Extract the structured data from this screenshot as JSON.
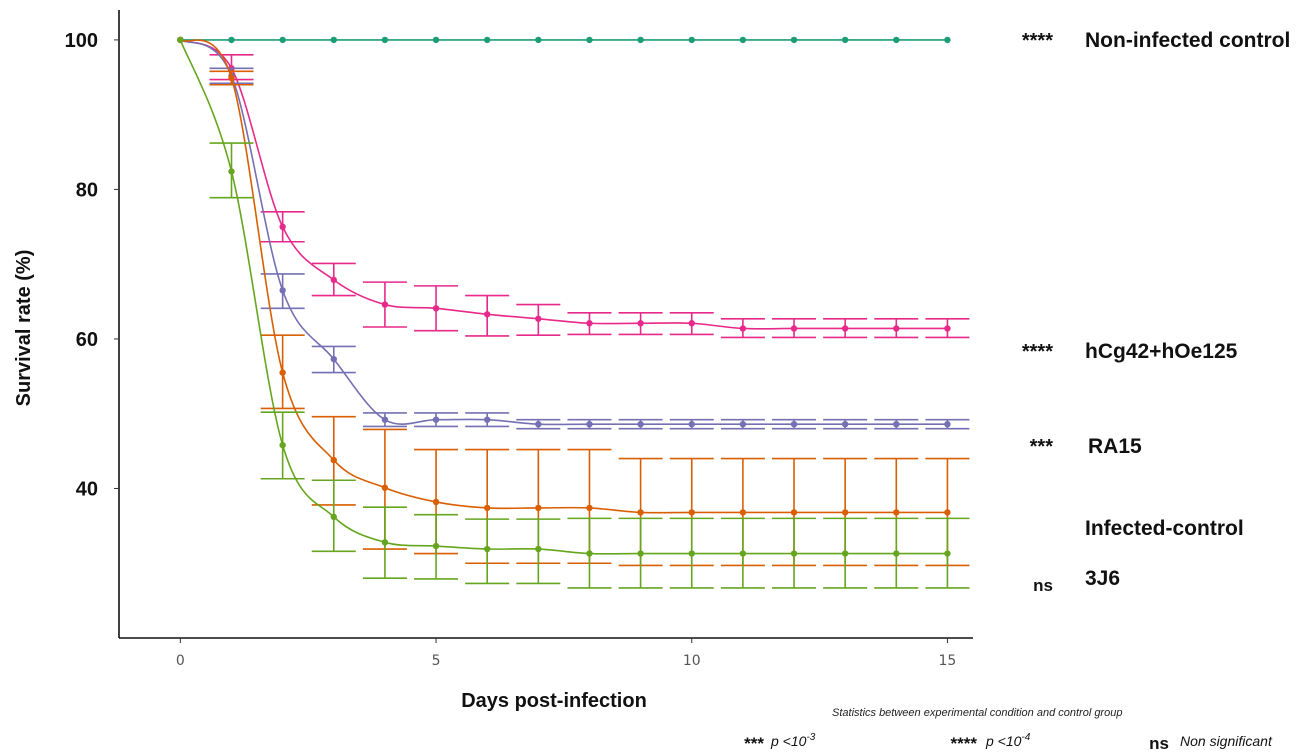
{
  "chart_data": {
    "type": "line",
    "xlabel": "Days post-infection",
    "ylabel": "Survival rate (%)",
    "xlim": [
      -1.2,
      15.5
    ],
    "ylim": [
      20,
      104
    ],
    "x_ticks": [
      0,
      5,
      10,
      15
    ],
    "y_ticks": [
      40,
      60,
      80,
      100
    ],
    "grid": false,
    "x": [
      0,
      1,
      2,
      3,
      4,
      5,
      6,
      7,
      8,
      9,
      10,
      11,
      12,
      13,
      14,
      15
    ],
    "series": [
      {
        "name": "Non-infected control",
        "color": "#1b9e77",
        "significance": "****",
        "values": [
          100,
          100,
          100,
          100,
          100,
          100,
          100,
          100,
          100,
          100,
          100,
          100,
          100,
          100,
          100,
          100
        ],
        "err_low": [
          0,
          0,
          0,
          0,
          0,
          0,
          0,
          0,
          0,
          0,
          0,
          0,
          0,
          0,
          0,
          0
        ],
        "err_high": [
          0,
          0,
          0,
          0,
          0,
          0,
          0,
          0,
          0,
          0,
          0,
          0,
          0,
          0,
          0,
          0
        ]
      },
      {
        "name": "hCg42+hOe125",
        "color": "#e7298a",
        "significance": "****",
        "values": [
          100,
          96.2,
          75,
          67.9,
          64.6,
          64.1,
          63.3,
          62.7,
          62.1,
          62.1,
          62.1,
          61.4,
          61.4,
          61.4,
          61.4,
          61.4
        ],
        "err_low": [
          0,
          1.5,
          2.0,
          2.1,
          3.0,
          3.0,
          2.9,
          2.2,
          1.5,
          1.5,
          1.5,
          1.2,
          1.2,
          1.2,
          1.2,
          1.2
        ],
        "err_high": [
          0,
          1.8,
          2.0,
          2.2,
          3.0,
          3.0,
          2.5,
          1.9,
          1.4,
          1.4,
          1.4,
          1.3,
          1.3,
          1.3,
          1.3,
          1.3
        ]
      },
      {
        "name": "RA15",
        "color": "#7570b3",
        "significance": "***",
        "values": [
          100,
          95.2,
          66.5,
          57.3,
          49.2,
          49.2,
          49.2,
          48.6,
          48.6,
          48.6,
          48.6,
          48.6,
          48.6,
          48.6,
          48.6,
          48.6
        ],
        "err_low": [
          0,
          1.0,
          2.4,
          1.8,
          0.9,
          0.9,
          0.9,
          0.6,
          0.6,
          0.6,
          0.6,
          0.6,
          0.6,
          0.6,
          0.6,
          0.6
        ],
        "err_high": [
          0,
          1.0,
          2.2,
          1.7,
          0.9,
          0.9,
          0.9,
          0.6,
          0.6,
          0.6,
          0.6,
          0.6,
          0.6,
          0.6,
          0.6,
          0.6
        ]
      },
      {
        "name": "Infected-control",
        "color": "#d95f02",
        "significance": "",
        "values": [
          100,
          94.9,
          55.5,
          43.8,
          40.1,
          38.2,
          37.4,
          37.4,
          37.4,
          36.8,
          36.8,
          36.8,
          36.8,
          36.8,
          36.8,
          36.8
        ],
        "err_low": [
          0,
          0.9,
          4.8,
          6.0,
          8.2,
          6.9,
          7.4,
          7.4,
          7.4,
          7.1,
          7.1,
          7.1,
          7.1,
          7.1,
          7.1,
          7.1
        ],
        "err_high": [
          0,
          0.9,
          5.0,
          5.8,
          7.8,
          7.0,
          7.8,
          7.8,
          7.8,
          7.2,
          7.2,
          7.2,
          7.2,
          7.2,
          7.2,
          7.2
        ]
      },
      {
        "name": "3J6",
        "color": "#66a61e",
        "significance": "ns",
        "values": [
          100,
          82.4,
          45.8,
          36.2,
          32.8,
          32.3,
          31.9,
          31.9,
          31.3,
          31.3,
          31.3,
          31.3,
          31.3,
          31.3,
          31.3,
          31.3
        ],
        "err_low": [
          0,
          3.5,
          4.5,
          4.6,
          4.8,
          4.4,
          4.6,
          4.6,
          4.6,
          4.6,
          4.6,
          4.6,
          4.6,
          4.6,
          4.6,
          4.6
        ],
        "err_high": [
          0,
          3.8,
          4.4,
          4.9,
          4.7,
          4.2,
          4.0,
          4.0,
          4.7,
          4.7,
          4.7,
          4.7,
          4.7,
          4.7,
          4.7,
          4.7
        ]
      }
    ],
    "annotations": {
      "stats_title": "Statistics between experimental condition and control group",
      "legend_items": [
        {
          "symbol": "***",
          "text": "p <10-3",
          "base": "p <10",
          "exp": "-3"
        },
        {
          "symbol": "****",
          "text": "p <10-4",
          "base": "p <10",
          "exp": "-4"
        },
        {
          "symbol": "ns",
          "text": "Non significant",
          "base": "Non significant",
          "exp": ""
        }
      ]
    }
  }
}
